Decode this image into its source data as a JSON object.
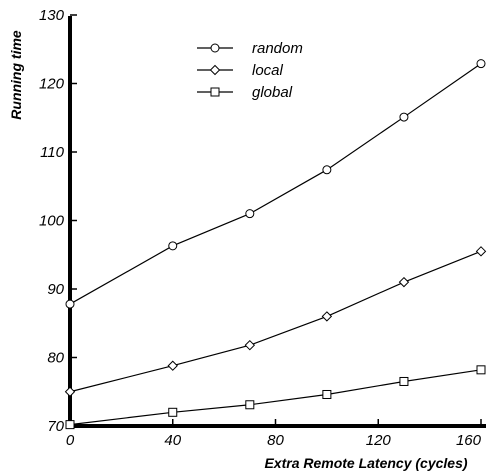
{
  "chart_data": {
    "type": "line",
    "xlabel": "Extra Remote Latency (cycles)",
    "ylabel": "Running time",
    "xlim": [
      0,
      160
    ],
    "ylim": [
      70,
      130
    ],
    "xticks": [
      0,
      40,
      80,
      120,
      160
    ],
    "yticks": [
      70,
      80,
      90,
      100,
      110,
      120,
      130
    ],
    "grid": false,
    "legend_position": "top-center",
    "series": [
      {
        "name": "random",
        "marker": "circle",
        "x": [
          0,
          40,
          70,
          100,
          130,
          160
        ],
        "y": [
          87.8,
          96.3,
          101.0,
          107.4,
          115.1,
          122.9
        ]
      },
      {
        "name": "local",
        "marker": "diamond",
        "x": [
          0,
          40,
          70,
          100,
          130,
          160
        ],
        "y": [
          75.0,
          78.8,
          81.8,
          86.0,
          91.0,
          95.5
        ]
      },
      {
        "name": "global",
        "marker": "square",
        "x": [
          0,
          40,
          70,
          100,
          130,
          160
        ],
        "y": [
          70.2,
          72.0,
          73.1,
          74.6,
          76.5,
          78.2
        ]
      }
    ]
  }
}
